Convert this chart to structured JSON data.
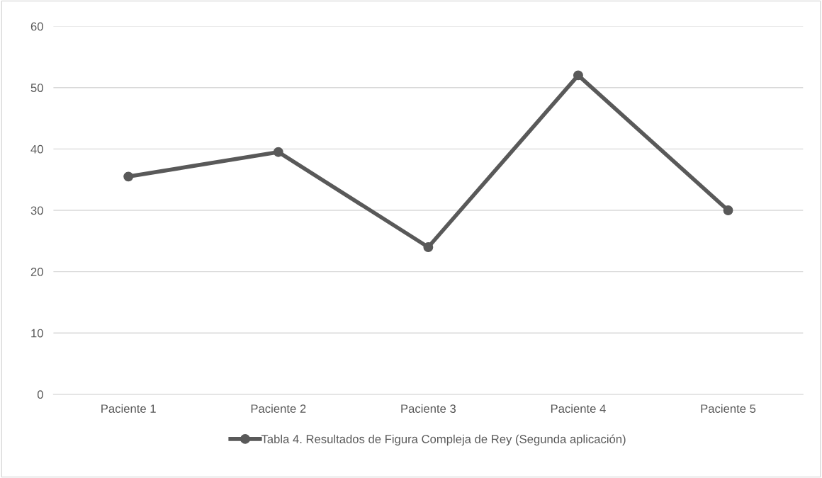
{
  "chart_data": {
    "type": "line",
    "categories": [
      "Paciente 1",
      "Paciente 2",
      "Paciente 3",
      "Paciente 4",
      "Paciente 5"
    ],
    "series": [
      {
        "name": "Tabla 4. Resultados de Figura Compleja de Rey (Segunda aplicación)",
        "color": "#595959",
        "values": [
          35.5,
          39.5,
          24,
          52,
          30
        ]
      }
    ],
    "ylim": [
      0,
      60
    ],
    "yticks": [
      0,
      10,
      20,
      30,
      40,
      50,
      60
    ],
    "grid": "y",
    "legend": "bottom",
    "marker": "circle",
    "line_style": "solid"
  }
}
